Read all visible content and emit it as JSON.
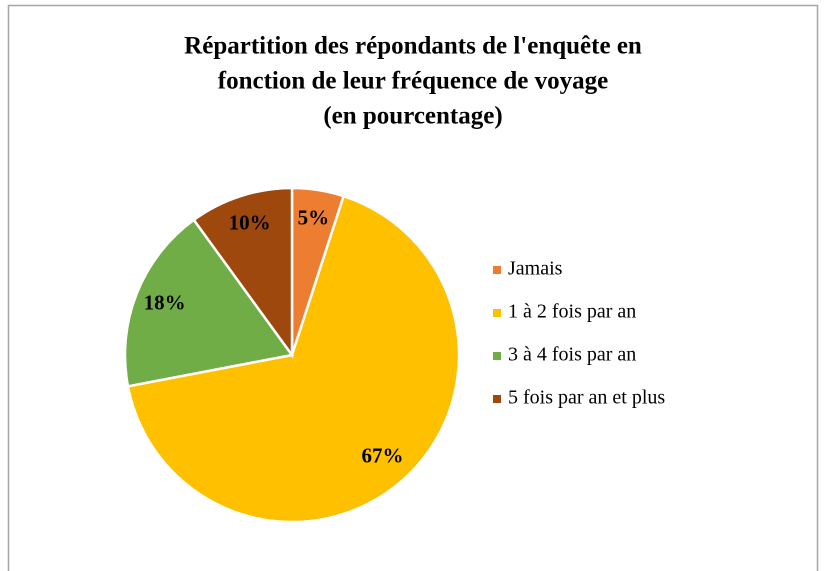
{
  "chart_data": {
    "type": "pie",
    "title": [
      "Répartition des répondants de l'enquête en",
      "fonction de leur fréquence de voyage",
      "(en pourcentage)"
    ],
    "categories": [
      "Jamais",
      "1 à 2 fois par an",
      "3 à 4 fois par an",
      "5 fois par an et plus"
    ],
    "values": [
      5,
      67,
      18,
      10
    ],
    "value_labels": [
      "5%",
      "67%",
      "18%",
      "10%"
    ],
    "colors": [
      "#ED7D31",
      "#FFC000",
      "#70AD47",
      "#9E480E"
    ],
    "legend": "right"
  }
}
